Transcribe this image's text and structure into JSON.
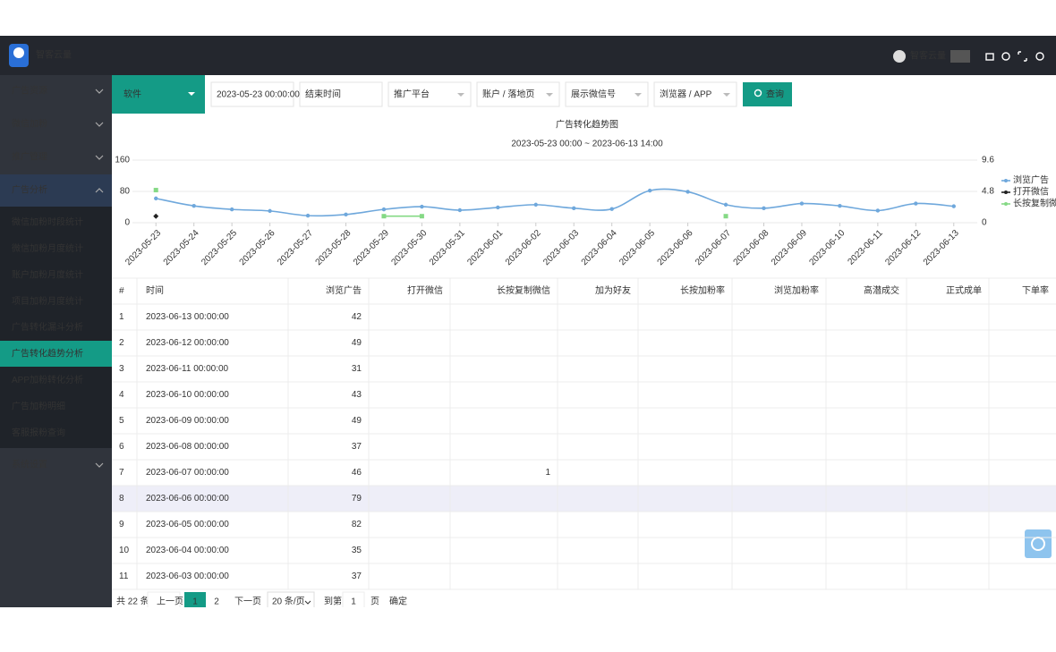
{
  "header": {
    "brand": "智客云量",
    "user": "智客云量"
  },
  "menu": [
    "广告资源",
    "微信加粉",
    "推广管理",
    "广告分析"
  ],
  "submenu": [
    "微信加粉时段统计",
    "微信加粉月度统计",
    "账户加粉月度统计",
    "项目加粉月度统计",
    "广告转化漏斗分析",
    "广告转化趋势分析",
    "APP加粉转化分析",
    "广告加粉明细",
    "客服报粉查询"
  ],
  "menu_bottom": "系统设置",
  "filters": {
    "category": "软件",
    "start": "2023-05-23 00:00:00",
    "end": "结束时间",
    "platform": "推广平台",
    "account": "账户 / 落地页",
    "wechat": "展示微信号",
    "browser": "浏览器 / APP",
    "search": "查询"
  },
  "chart_data": {
    "type": "line",
    "title": "广告转化趋势图",
    "subtitle": "2023-05-23 00:00 ~ 2023-06-13 14:00",
    "categories": [
      "2023-05-23",
      "2023-05-24",
      "2023-05-25",
      "2023-05-26",
      "2023-05-27",
      "2023-05-28",
      "2023-05-29",
      "2023-05-30",
      "2023-05-31",
      "2023-06-01",
      "2023-06-02",
      "2023-06-03",
      "2023-06-04",
      "2023-06-05",
      "2023-06-06",
      "2023-06-07",
      "2023-06-08",
      "2023-06-09",
      "2023-06-10",
      "2023-06-11",
      "2023-06-12",
      "2023-06-13"
    ],
    "series": [
      {
        "name": "浏览广告",
        "color": "#6fa8dc",
        "values": [
          62,
          43,
          34,
          30,
          18,
          21,
          34,
          41,
          32,
          39,
          46,
          37,
          35,
          82,
          79,
          46,
          37,
          49,
          43,
          31,
          49,
          42
        ]
      },
      {
        "name": "打开微信",
        "color": "#222222",
        "axis": "y2",
        "values": [
          1,
          null,
          null,
          null,
          null,
          null,
          null,
          null,
          null,
          null,
          null,
          null,
          null,
          null,
          null,
          null,
          null,
          null,
          null,
          null,
          null,
          null
        ]
      },
      {
        "name": "长按复制微信",
        "color": "#85d985",
        "axis": "y2",
        "values": [
          5,
          null,
          null,
          null,
          null,
          null,
          1,
          1,
          null,
          null,
          null,
          null,
          null,
          null,
          null,
          1,
          null,
          null,
          null,
          null,
          null,
          null
        ]
      }
    ],
    "ylim": [
      0,
      160
    ],
    "yticks": [
      0,
      80,
      160
    ],
    "y2lim": [
      0,
      9.6
    ],
    "y2ticks": [
      0,
      4.8,
      9.6
    ],
    "grid": true,
    "legend": "right"
  },
  "table": {
    "columns": [
      "#",
      "时间",
      "浏览广告",
      "打开微信",
      "长按复制微信",
      "加为好友",
      "长按加粉率",
      "浏览加粉率",
      "高潜成交",
      "正式成单",
      "下单率"
    ],
    "rows": [
      [
        1,
        "2023-06-13 00:00:00",
        42
      ],
      [
        2,
        "2023-06-12 00:00:00",
        49
      ],
      [
        3,
        "2023-06-11 00:00:00",
        31
      ],
      [
        4,
        "2023-06-10 00:00:00",
        43
      ],
      [
        5,
        "2023-06-09 00:00:00",
        49
      ],
      [
        6,
        "2023-06-08 00:00:00",
        37
      ],
      [
        7,
        "2023-06-07 00:00:00",
        46,
        null,
        1
      ],
      [
        8,
        "2023-06-06 00:00:00",
        79
      ],
      [
        9,
        "2023-06-05 00:00:00",
        82
      ],
      [
        10,
        "2023-06-04 00:00:00",
        35
      ],
      [
        11,
        "2023-06-03 00:00:00",
        37
      ]
    ]
  },
  "pagination": {
    "total": "共 22 条",
    "prev": "上一页",
    "pages": [
      1,
      2
    ],
    "next": "下一页",
    "page_size": "20 条/页",
    "goto": "到第",
    "goto_value": 1,
    "page_unit": "页",
    "confirm": "确定"
  }
}
